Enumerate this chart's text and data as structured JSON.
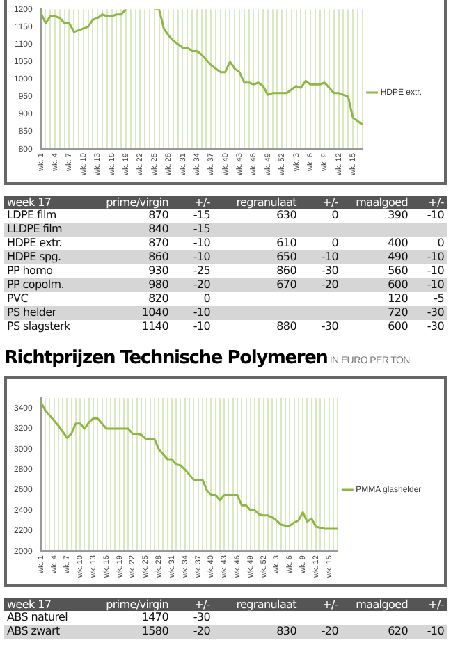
{
  "chart_data": [
    {
      "type": "line",
      "categories": [
        "wk. 1",
        null,
        null,
        "wk. 4",
        null,
        null,
        "wk. 7",
        null,
        null,
        "wk. 10",
        null,
        null,
        "wk. 13",
        null,
        null,
        "wk. 16",
        null,
        null,
        "wk. 19",
        null,
        null,
        "wk. 22",
        null,
        null,
        "wk. 25",
        null,
        null,
        "wk. 28",
        null,
        null,
        "wk. 31",
        null,
        null,
        "wk. 34",
        null,
        null,
        "wk. 37",
        null,
        null,
        "wk. 40",
        null,
        null,
        "wk. 43",
        null,
        null,
        "wk. 46",
        null,
        null,
        "wk. 49",
        null,
        null,
        "wk. 52",
        null,
        null,
        "wk. 3",
        null,
        null,
        "wk. 6",
        null,
        null,
        "wk. 9",
        null,
        null,
        "wk. 12",
        null,
        null,
        "wk. 15",
        null,
        null
      ],
      "series": [
        {
          "name": "HDPE extr.",
          "color": "#8db644",
          "values": [
            1190,
            1160,
            1180,
            1180,
            1175,
            1160,
            1160,
            1135,
            1140,
            1145,
            1150,
            1170,
            1175,
            1185,
            1180,
            1180,
            1185,
            1185,
            1200,
            null,
            null,
            null,
            null,
            null,
            1200,
            1200,
            1145,
            1125,
            1110,
            1100,
            1090,
            1090,
            1080,
            1080,
            1070,
            1055,
            1040,
            1030,
            1020,
            1020,
            1050,
            1030,
            1020,
            990,
            990,
            985,
            990,
            980,
            955,
            960,
            960,
            960,
            960,
            970,
            980,
            975,
            995,
            985,
            985,
            985,
            990,
            975,
            960,
            960,
            955,
            950,
            890,
            880,
            870
          ]
        }
      ],
      "ylim": [
        800,
        1200
      ],
      "yticks": [
        800,
        850,
        900,
        950,
        1000,
        1050,
        1100,
        1150,
        1200
      ],
      "grid": "x",
      "legend": "right",
      "marker": "none"
    },
    {
      "type": "other",
      "title": "week 17",
      "categories": [
        "prime/virgin",
        "+/-",
        "regranulaat",
        "+/-",
        "maalgoed",
        "+/-"
      ],
      "y_categories": [
        "LDPE film",
        "LLDPE film",
        "HDPE extr.",
        "HDPE spg.",
        "PP homo",
        "PP copolm.",
        "PVC",
        "PS helder",
        "PS slagsterk"
      ],
      "cell_labels": [
        [
          "870",
          "-15",
          "630",
          "0",
          "390",
          "-10"
        ],
        [
          "840",
          "-15",
          null,
          null,
          null,
          null
        ],
        [
          "870",
          "-10",
          "610",
          "0",
          "400",
          "0"
        ],
        [
          "860",
          "-10",
          "650",
          "-10",
          "490",
          "-10"
        ],
        [
          "930",
          "-25",
          "860",
          "-30",
          "560",
          "-10"
        ],
        [
          "980",
          "-20",
          "670",
          "-20",
          "600",
          "-10"
        ],
        [
          "820",
          "0",
          null,
          null,
          "120",
          "-5"
        ],
        [
          "1040",
          "-10",
          null,
          null,
          "720",
          "-30"
        ],
        [
          "1140",
          "-10",
          "880",
          "-30",
          "600",
          "-30"
        ]
      ]
    },
    {
      "type": "line",
      "title": "Richtprijzen Technische Polymeren",
      "subtitle": "IN EURO PER TON",
      "categories": [
        "wk. 1",
        null,
        null,
        "wk. 4",
        null,
        null,
        "wk. 7",
        null,
        null,
        "wk. 10",
        null,
        null,
        "wk. 13",
        null,
        null,
        "wk. 16",
        null,
        null,
        "wk. 19",
        null,
        null,
        "wk. 22",
        null,
        null,
        "wk. 25",
        null,
        null,
        "wk. 28",
        null,
        null,
        "wk. 31",
        null,
        null,
        "wk. 34",
        null,
        null,
        "wk. 37",
        null,
        null,
        "wk. 40",
        null,
        null,
        "wk. 43",
        null,
        null,
        "wk. 46",
        null,
        null,
        "wk. 49",
        null,
        null,
        "wk. 52",
        null,
        null,
        "wk. 3",
        null,
        null,
        "wk. 6",
        null,
        null,
        "wk. 9",
        null,
        null,
        "wk. 12",
        null,
        null,
        "wk. 15",
        null,
        null
      ],
      "series": [
        {
          "name": "PMMA glashelder",
          "color": "#8db644",
          "values": [
            3460,
            3380,
            3330,
            3280,
            3230,
            3170,
            3110,
            3150,
            3250,
            3250,
            3200,
            3260,
            3300,
            3300,
            3250,
            3200,
            3200,
            3200,
            3200,
            3200,
            3200,
            3150,
            3150,
            3140,
            3100,
            3100,
            3100,
            3000,
            2950,
            2900,
            2900,
            2850,
            2840,
            2800,
            2750,
            2700,
            2700,
            2700,
            2600,
            2550,
            2550,
            2500,
            2550,
            2550,
            2550,
            2550,
            2450,
            2450,
            2400,
            2400,
            2360,
            2350,
            2350,
            2330,
            2300,
            2260,
            2250,
            2250,
            2280,
            2300,
            2380,
            2290,
            2320,
            2240,
            2230,
            2220,
            2220,
            2220,
            2220
          ]
        }
      ],
      "ylim": [
        2000,
        3500
      ],
      "yticks": [
        2000,
        2200,
        2400,
        2600,
        2800,
        3000,
        3200,
        3400
      ],
      "grid": "x",
      "legend": "right",
      "marker": "none"
    },
    {
      "type": "other",
      "title": "week 17",
      "categories": [
        "prime/virgin",
        "+/-",
        "regranulaat",
        "+/-",
        "maalgoed",
        "+/-"
      ],
      "y_categories": [
        "ABS naturel",
        "ABS zwart"
      ],
      "cell_labels": [
        [
          "1470",
          "-30",
          null,
          null,
          null,
          null
        ],
        [
          "1580",
          "-20",
          "830",
          "-20",
          "620",
          "-10"
        ]
      ]
    }
  ]
}
